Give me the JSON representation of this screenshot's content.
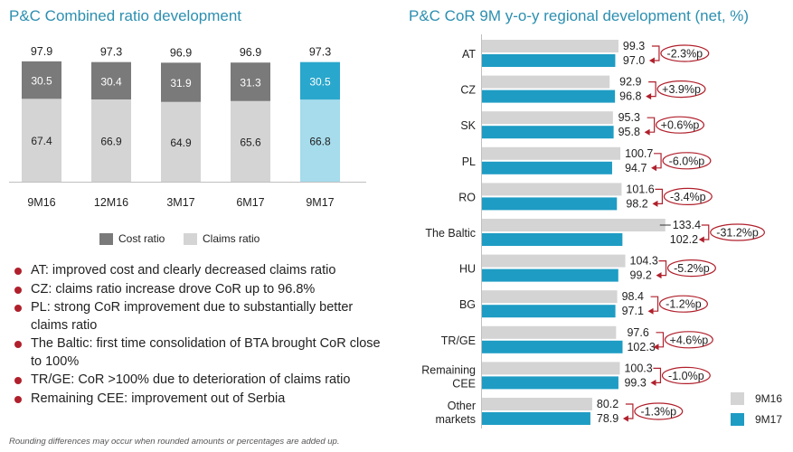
{
  "left_title": "P&C Combined ratio development",
  "right_title": "P&C CoR 9M y-o-y regional development (net, %)",
  "colors": {
    "cost": "#7a7a7a",
    "claims": "#d4d4d4",
    "cost_highlight": "#2aa7cc",
    "claims_highlight": "#a6dcec",
    "bar_2016": "#d4d4d4",
    "bar_2017": "#1e9cc4",
    "arrow": "#b0202c",
    "title": "#2c8fb0"
  },
  "legend": {
    "cost": "Cost ratio",
    "claims": "Claims ratio"
  },
  "bullets": [
    "AT: improved cost and clearly decreased claims ratio",
    "CZ: claims ratio increase drove CoR up to 96.8%",
    "PL: strong CoR improvement due to substantially better claims ratio",
    "The Baltic: first time consolidation of BTA brought CoR close to 100%",
    "TR/GE: CoR >100% due to deterioration of claims ratio",
    "Remaining CEE: improvement out of Serbia"
  ],
  "footnote": "Rounding differences may occur when rounded amounts or percentages are added up.",
  "right_legend": {
    "a": "9M16",
    "b": "9M17"
  },
  "chart_data": [
    {
      "type": "bar",
      "stacked": true,
      "title": "P&C Combined ratio development",
      "categories": [
        "9M16",
        "12M16",
        "3M17",
        "6M17",
        "9M17"
      ],
      "series": [
        {
          "name": "Claims ratio",
          "values": [
            67.4,
            66.9,
            64.9,
            65.6,
            66.8
          ]
        },
        {
          "name": "Cost ratio",
          "values": [
            30.5,
            30.4,
            31.9,
            31.3,
            30.5
          ]
        }
      ],
      "totals": [
        "97.9",
        "97.3",
        "96.9",
        "96.9",
        "97.3"
      ],
      "highlight_index": 4,
      "legend_position": "bottom"
    },
    {
      "type": "bar",
      "orientation": "horizontal",
      "title": "P&C CoR 9M y-o-y regional development (net, %)",
      "categories": [
        [
          "AT"
        ],
        [
          "CZ"
        ],
        [
          "SK"
        ],
        [
          "PL"
        ],
        [
          "RO"
        ],
        [
          "The Baltic"
        ],
        [
          "HU"
        ],
        [
          "BG"
        ],
        [
          "TR/GE"
        ],
        [
          "Remaining",
          "CEE"
        ],
        [
          "Other",
          "markets"
        ]
      ],
      "series": [
        {
          "name": "9M16",
          "values": [
            99.3,
            92.9,
            95.3,
            100.7,
            101.6,
            133.4,
            104.3,
            98.4,
            97.6,
            100.3,
            80.2
          ]
        },
        {
          "name": "9M17",
          "values": [
            97.0,
            96.8,
            95.8,
            94.7,
            98.2,
            102.2,
            99.2,
            97.1,
            102.3,
            99.3,
            78.9
          ]
        }
      ],
      "changes": [
        "-2.3%p",
        "+3.9%p",
        "+0.6%p",
        "-6.0%p",
        "-3.4%p",
        "-31.2%p",
        "-5.2%p",
        "-1.2%p",
        "+4.6%p",
        "-1.0%p",
        "-1.3%p"
      ],
      "legend_position": "bottom-right"
    }
  ]
}
